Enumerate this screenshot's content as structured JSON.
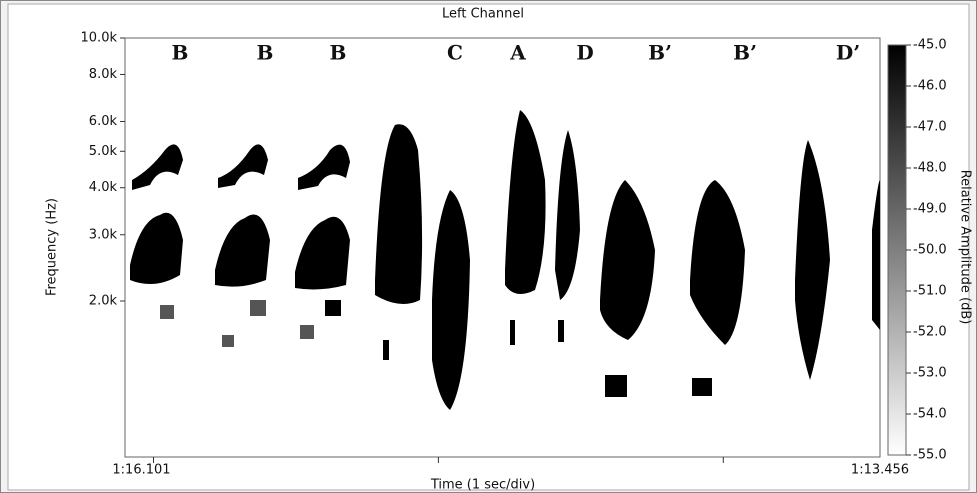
{
  "chart_data": {
    "type": "spectrogram",
    "title": "Left Channel",
    "x_label": "Time (1 sec/div)",
    "y_label": "Frequency (Hz)",
    "colorbar_label": "Relative Amplitude (dB)",
    "x_start_label": "1:16.101",
    "x_end_label": "1:13.456",
    "xlim": [
      -0.1,
      2.55
    ],
    "xticks": [
      0,
      1,
      2
    ],
    "yscale": "log",
    "ylim": [
      770,
      10000
    ],
    "yticks": [
      {
        "value": 10000,
        "label": "10.0k"
      },
      {
        "value": 8000,
        "label": "8.0k"
      },
      {
        "value": 6000,
        "label": "6.0k"
      },
      {
        "value": 5000,
        "label": "5.0k"
      },
      {
        "value": 4000,
        "label": "4.0k"
      },
      {
        "value": 3000,
        "label": "3.0k"
      },
      {
        "value": 2000,
        "label": "2.0k"
      }
    ],
    "clim": [
      -55,
      -45
    ],
    "cticks": [
      {
        "value": -45,
        "label": "-45.0"
      },
      {
        "value": -46,
        "label": "-46.0"
      },
      {
        "value": -47,
        "label": "-47.0"
      },
      {
        "value": -48,
        "label": "-48.0"
      },
      {
        "value": -49,
        "label": "-49.0"
      },
      {
        "value": -50,
        "label": "-50.0"
      },
      {
        "value": -51,
        "label": "-51.0"
      },
      {
        "value": -52,
        "label": "-52.0"
      },
      {
        "value": -53,
        "label": "-53.0"
      },
      {
        "value": -54,
        "label": "-54.0"
      },
      {
        "value": -55,
        "label": "-55.0"
      }
    ],
    "annotations": [
      "B",
      "B",
      "B",
      "C",
      "A",
      "D",
      "B’",
      "B’",
      "D’"
    ]
  }
}
